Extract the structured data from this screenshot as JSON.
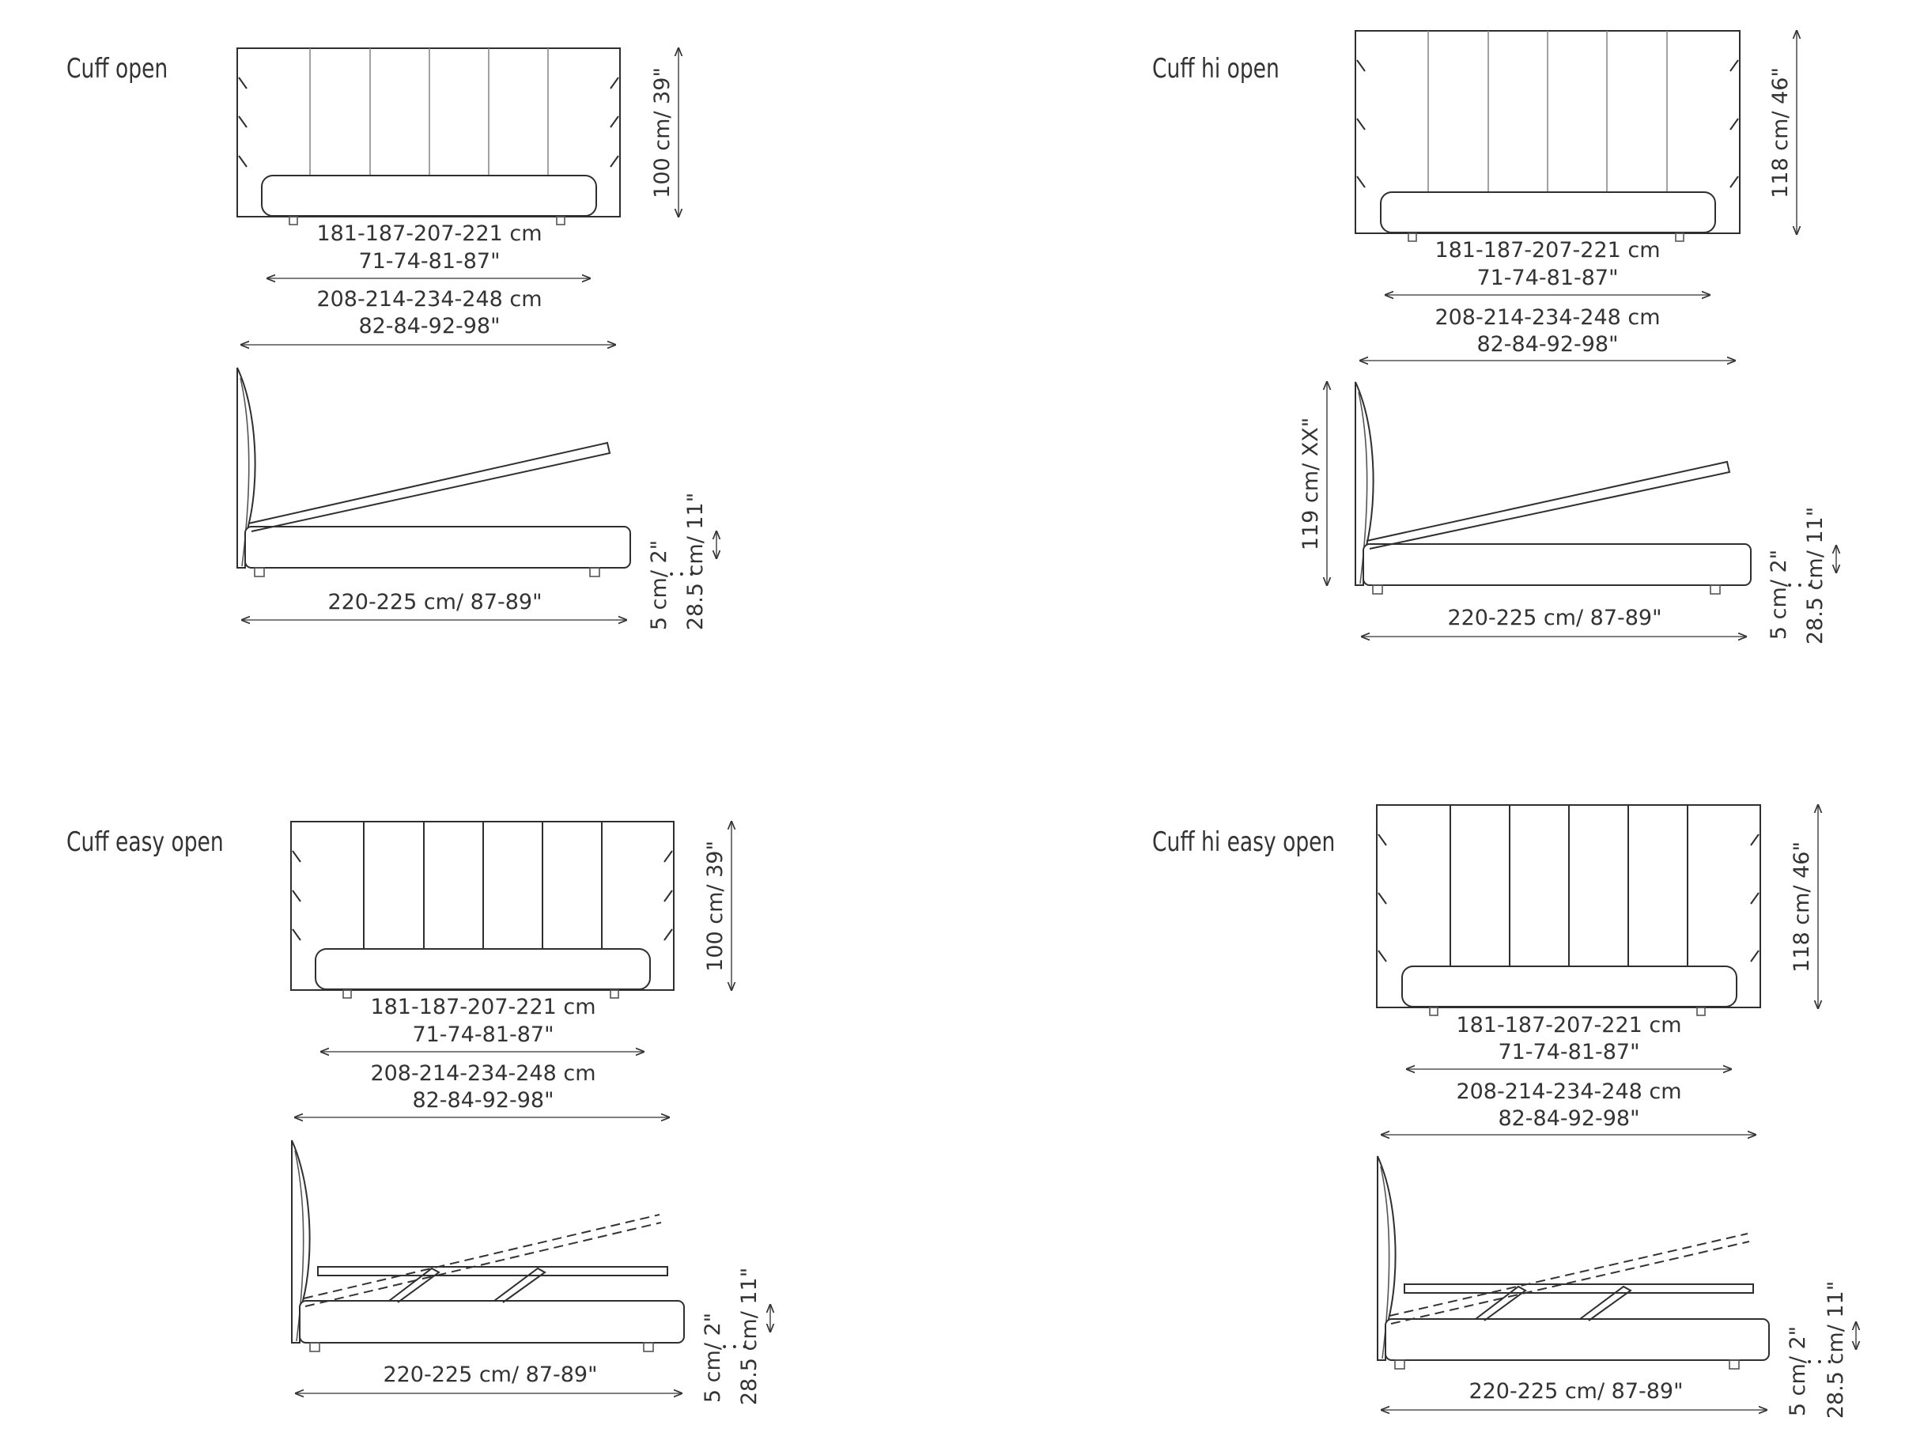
{
  "panels": [
    {
      "id": "cuff-open",
      "title": "Cuff open",
      "front_width": "181-187-207-221 cm",
      "front_width_in": "71-74-81-87\"",
      "overall_width": "208-214-234-248 cm",
      "overall_width_in": "82-84-92-98\"",
      "headboard_height": "100 cm/ 39\"",
      "length": "220-225 cm/ 87-89\"",
      "feet": "5 cm/ 2\"",
      "base_height": "28.5 cm/ 11\"",
      "side_height": ""
    },
    {
      "id": "cuff-hi-open",
      "title": "Cuff hi open",
      "front_width": "181-187-207-221 cm",
      "front_width_in": "71-74-81-87\"",
      "overall_width": "208-214-234-248 cm",
      "overall_width_in": "82-84-92-98\"",
      "headboard_height": "118 cm/ 46\"",
      "length": "220-225 cm/ 87-89\"",
      "feet": "5 cm/ 2\"",
      "base_height": "28.5 cm/ 11\"",
      "side_height": "119 cm/ XX\""
    },
    {
      "id": "cuff-easy-open",
      "title": "Cuff easy open",
      "front_width": "181-187-207-221 cm",
      "front_width_in": "71-74-81-87\"",
      "overall_width": "208-214-234-248 cm",
      "overall_width_in": "82-84-92-98\"",
      "headboard_height": "100 cm/ 39\"",
      "length": "220-225 cm/ 87-89\"",
      "feet": "5 cm/ 2\"",
      "base_height": "28.5 cm/ 11\"",
      "side_height": ""
    },
    {
      "id": "cuff-hi-easy-open",
      "title": "Cuff hi easy open",
      "front_width": "181-187-207-221 cm",
      "front_width_in": "71-74-81-87\"",
      "overall_width": "208-214-234-248 cm",
      "overall_width_in": "82-84-92-98\"",
      "headboard_height": "118 cm/ 46\"",
      "length": "220-225 cm/ 87-89\"",
      "feet": "5 cm/ 2\"",
      "base_height": "28.5 cm/ 11\"",
      "side_height": ""
    }
  ]
}
